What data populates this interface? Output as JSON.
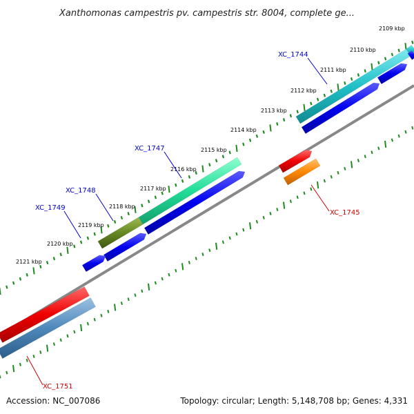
{
  "title": "Xanthomonas campestris pv. campestris str. 8004, complete ge...",
  "footer": {
    "accession": "Accession: NC_007086",
    "summary": "Topology: circular; Length: 5,148,708 bp; Genes: 4,331"
  },
  "colors": {
    "backbone": "#888888",
    "tick": "#1f8a1f",
    "cds": "#0000ee",
    "label_blue": "#0000cc",
    "label_red": "#cc0000"
  },
  "ticks": [
    "2109 kbp",
    "2110 kbp",
    "2111 kbp",
    "2112 kbp",
    "2113 kbp",
    "2114 kbp",
    "2115 kbp",
    "2116 kbp",
    "2117 kbp",
    "2118 kbp",
    "2119 kbp",
    "2120 kbp",
    "2121 kbp"
  ],
  "genes": [
    {
      "id": "XC_1744",
      "label_color": "#0000cc",
      "feature_color": "#20c0c8"
    },
    {
      "id": "XC_1745",
      "label_color": "#cc0000",
      "feature_color": "#ff8800"
    },
    {
      "id": "XC_1747",
      "label_color": "#0000cc",
      "feature_color": "#22dd99"
    },
    {
      "id": "XC_1748",
      "label_color": "#0000cc",
      "feature_color": "#668822"
    },
    {
      "id": "XC_1749",
      "label_color": "#0000cc",
      "feature_color": "#0000ee"
    },
    {
      "id": "XC_1751",
      "label_color": "#cc0000",
      "feature_color": "#e00000"
    }
  ]
}
